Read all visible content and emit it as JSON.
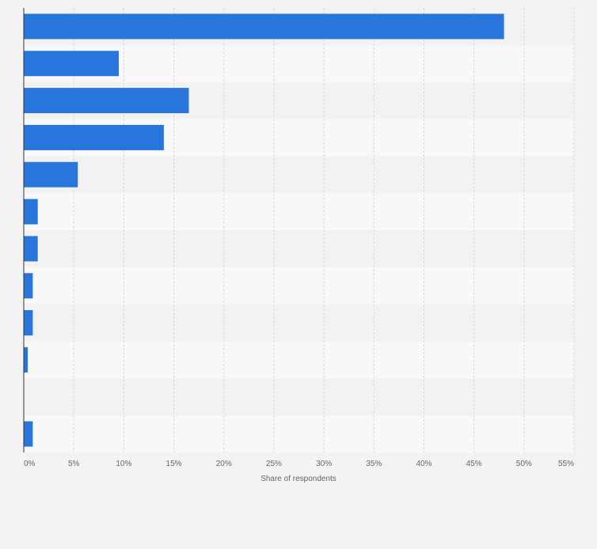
{
  "colors": {
    "bar": "#2876dd",
    "band_light": "#f8f8f8",
    "band_dark": "#f2f2f2",
    "grid": "#d8d8d8",
    "axis": "#333333",
    "tick_text": "#666666"
  },
  "chart_data": {
    "type": "bar",
    "orientation": "horizontal",
    "title": "",
    "xlabel": "Share of respondents",
    "ylabel": "",
    "xlim": [
      0,
      55
    ],
    "tick_values": [
      0,
      5,
      10,
      15,
      20,
      25,
      30,
      35,
      40,
      45,
      50,
      55
    ],
    "tick_labels": [
      "0%",
      "5%",
      "10%",
      "15%",
      "20%",
      "25%",
      "30%",
      "35%",
      "40%",
      "45%",
      "50%",
      "55%"
    ],
    "categories": [
      "",
      "",
      "",
      "",
      "",
      "",
      "",
      "",
      "",
      "",
      "",
      ""
    ],
    "values": [
      48,
      9.5,
      16.5,
      14,
      5.4,
      1.4,
      1.4,
      0.9,
      0.9,
      0.4,
      0,
      0.9
    ],
    "grid": true,
    "legend": "none"
  }
}
